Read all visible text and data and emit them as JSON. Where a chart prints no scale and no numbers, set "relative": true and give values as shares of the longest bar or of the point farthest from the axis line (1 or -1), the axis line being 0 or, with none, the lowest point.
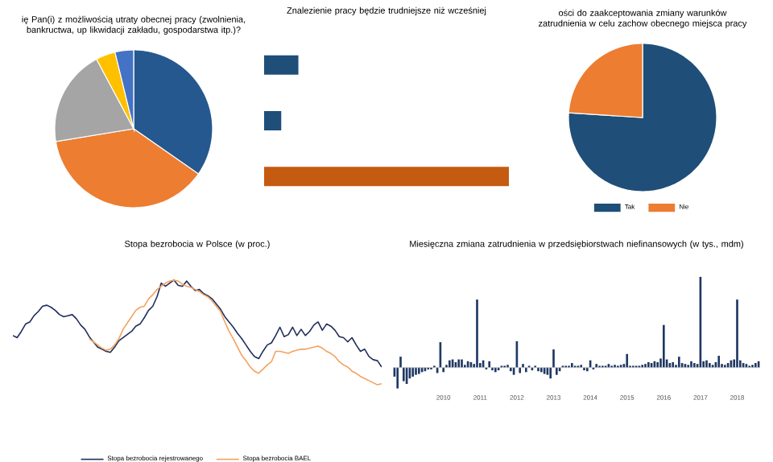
{
  "chart_data": [
    {
      "type": "pie",
      "title": "ię Pan(i) z możliwością utraty obecnej pracy (zwolnienia, bankructwa, up likwidacji zakładu, gospodarstwa itp.)?",
      "categories": [
        null,
        null,
        null,
        null,
        null
      ],
      "values": [
        34.7,
        37.7,
        19.8,
        4.0,
        3.8
      ],
      "colors": [
        "#25588f",
        "#ed7d31",
        "#a5a5a5",
        "#ffc000",
        "#4472c4"
      ]
    },
    {
      "type": "bar",
      "orientation": "horizontal",
      "relative": true,
      "title": "Znalezienie pracy będzie trudniejsze niż wcześniej",
      "categories": [
        null,
        null,
        null
      ],
      "values": [
        0.14,
        0.07,
        1
      ],
      "colors": [
        "#1f4e79",
        "#1f4e79",
        "#c55a11"
      ]
    },
    {
      "type": "pie",
      "title": "ości do zaakceptowania zmiany warunków zatrudnienia w celu zachow obecnego miejsca pracy",
      "categories": [
        "Tak",
        "Nie"
      ],
      "values": [
        76,
        24
      ],
      "colors": [
        "#1f4e79",
        "#ed7d31"
      ],
      "legend": "bottom"
    },
    {
      "type": "line",
      "relative": true,
      "title": "Stopa bezrobocia w Polsce (w proc.)",
      "legend": "bottom",
      "categories": [
        null,
        null,
        null,
        null,
        null,
        null,
        null,
        null,
        null,
        null,
        null,
        null,
        null,
        null,
        null,
        null,
        null,
        null,
        null,
        null,
        null,
        null,
        null,
        null,
        null,
        null,
        null,
        null,
        null,
        null,
        null,
        null,
        null,
        null,
        null,
        null,
        null,
        null,
        null,
        null,
        null,
        null,
        null,
        null,
        null,
        null,
        null,
        null,
        null,
        null,
        null,
        null,
        null,
        null,
        null,
        null,
        null,
        null,
        null,
        null,
        null,
        null,
        null,
        null,
        null,
        null,
        null,
        null,
        null,
        null,
        null,
        null,
        null,
        null,
        null,
        null,
        null,
        null,
        null,
        null,
        null,
        null,
        null,
        null,
        null,
        null,
        null,
        null
      ],
      "series": [
        {
          "name": "Stopa bezrobocia rejestrowanego",
          "color": "#1f2d5c",
          "values": [
            0.47,
            0.45,
            0.51,
            0.58,
            0.6,
            0.66,
            0.7,
            0.75,
            0.76,
            0.74,
            0.71,
            0.67,
            0.65,
            0.66,
            0.67,
            0.63,
            0.57,
            0.53,
            0.46,
            0.41,
            0.36,
            0.34,
            0.32,
            0.31,
            0.36,
            0.42,
            0.45,
            0.48,
            0.51,
            0.56,
            0.58,
            0.64,
            0.71,
            0.75,
            0.84,
            0.97,
            0.94,
            0.97,
            1,
            0.95,
            0.94,
            0.99,
            0.94,
            0.9,
            0.91,
            0.87,
            0.85,
            0.82,
            0.77,
            0.72,
            0.65,
            0.6,
            0.55,
            0.49,
            0.44,
            0.38,
            0.32,
            0.27,
            0.25,
            0.32,
            0.38,
            0.4,
            0.47,
            0.55,
            0.46,
            0.48,
            0.55,
            0.47,
            0.53,
            0.47,
            0.51,
            0.57,
            0.6,
            0.52,
            0.58,
            0.56,
            0.52,
            0.46,
            0.45,
            0.41,
            0.45,
            0.38,
            0.32,
            0.34,
            0.27,
            0.24,
            0.23,
            0.17
          ]
        },
        {
          "name": "Stopa bezrobocia BAEL",
          "color": "#f4a15d",
          "values": [
            null,
            null,
            null,
            null,
            null,
            null,
            null,
            null,
            null,
            null,
            null,
            null,
            null,
            null,
            null,
            null,
            null,
            null,
            0.44,
            0.41,
            0.38,
            0.35,
            0.33,
            0.34,
            0.38,
            0.44,
            0.53,
            0.59,
            0.65,
            0.71,
            0.74,
            0.75,
            0.82,
            0.86,
            0.91,
            0.94,
            0.97,
            0.99,
            1,
            0.99,
            0.96,
            0.94,
            0.93,
            0.91,
            0.89,
            0.86,
            0.84,
            0.8,
            0.75,
            0.7,
            0.6,
            0.51,
            0.44,
            0.36,
            0.28,
            0.23,
            0.17,
            0.13,
            0.11,
            0.15,
            0.19,
            0.22,
            0.32,
            0.32,
            0.31,
            0.3,
            0.32,
            0.33,
            0.34,
            0.34,
            0.35,
            0.36,
            0.37,
            0.35,
            0.32,
            0.3,
            0.27,
            0.22,
            0.19,
            0.17,
            0.13,
            0.11,
            0.08,
            0.06,
            0.04,
            0.02,
            0,
            0.01
          ]
        }
      ]
    },
    {
      "type": "bar",
      "relative": true,
      "title": "Miesięczna zmiana zatrudnienia w przedsiębiorstwach niefinansowych (w tys., mdm)",
      "color": "#1f3864",
      "categories": [
        null,
        null,
        null,
        null,
        null,
        null,
        null,
        null,
        null,
        null,
        null,
        null,
        null,
        null,
        null,
        null,
        "2010",
        null,
        null,
        null,
        null,
        null,
        null,
        null,
        null,
        null,
        null,
        null,
        "2011",
        null,
        null,
        null,
        null,
        null,
        null,
        null,
        null,
        null,
        null,
        null,
        "2012",
        null,
        null,
        null,
        null,
        null,
        null,
        null,
        null,
        null,
        null,
        null,
        "2013",
        null,
        null,
        null,
        null,
        null,
        null,
        null,
        null,
        null,
        null,
        null,
        "2014",
        null,
        null,
        null,
        null,
        null,
        null,
        null,
        null,
        null,
        null,
        null,
        "2015",
        null,
        null,
        null,
        null,
        null,
        null,
        null,
        null,
        null,
        null,
        null,
        "2016",
        null,
        null,
        null,
        null,
        null,
        null,
        null,
        null,
        null,
        null,
        null,
        "2017",
        null,
        null,
        null,
        null,
        null,
        null,
        null,
        null,
        null,
        null,
        null,
        "2018",
        null,
        null,
        null,
        null,
        null,
        null,
        null
      ],
      "values": [
        -0.1,
        -0.23,
        0.12,
        -0.15,
        -0.18,
        -0.12,
        -0.1,
        -0.08,
        -0.07,
        -0.05,
        -0.04,
        -0.02,
        -0.02,
        0.02,
        -0.06,
        0.28,
        -0.05,
        0.03,
        0.08,
        0.09,
        0.06,
        0.09,
        0.09,
        0.03,
        0.07,
        0.06,
        0.04,
        0.75,
        0.05,
        0.08,
        -0.02,
        0.07,
        -0.03,
        -0.05,
        -0.03,
        0.02,
        0.02,
        0.03,
        -0.04,
        -0.08,
        0.29,
        -0.06,
        0.04,
        -0.05,
        0.02,
        -0.03,
        0.02,
        -0.04,
        -0.05,
        -0.07,
        -0.08,
        -0.12,
        0.2,
        -0.08,
        -0.04,
        0.02,
        0.02,
        0.02,
        0.05,
        0.02,
        0.02,
        0.03,
        -0.03,
        -0.04,
        0.08,
        -0.02,
        0.04,
        0.02,
        0.02,
        0.02,
        0.04,
        0.02,
        0.03,
        0.02,
        0.03,
        0.04,
        0.15,
        0.02,
        0.02,
        0.02,
        0.02,
        0.03,
        0.04,
        0.06,
        0.05,
        0.07,
        0.06,
        0.1,
        0.47,
        0.09,
        0.05,
        0.06,
        0.03,
        0.12,
        0.05,
        0.04,
        0.03,
        0.07,
        0.05,
        0.04,
        1,
        0.07,
        0.08,
        0.05,
        0.03,
        0.06,
        0.13,
        0.04,
        0.03,
        0.05,
        0.08,
        0.09,
        0.75,
        0.08,
        0.05,
        0.04,
        0.02,
        0.03,
        0.05,
        0.07
      ]
    }
  ]
}
